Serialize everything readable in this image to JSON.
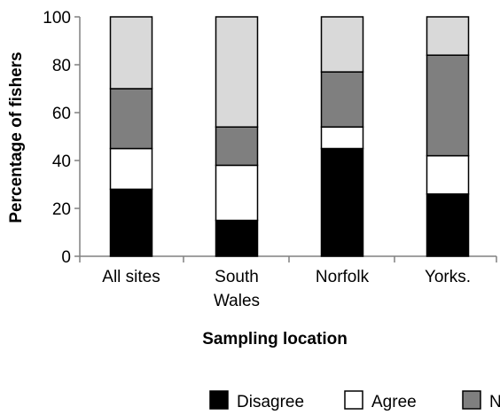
{
  "chart_data": {
    "type": "bar",
    "stacked": true,
    "categories": [
      [
        "All sites"
      ],
      [
        "South",
        "Wales"
      ],
      [
        "Norfolk"
      ],
      [
        "Yorks."
      ]
    ],
    "series": [
      {
        "name": "Disagree",
        "color": "#000000",
        "values": [
          28,
          15,
          45,
          26
        ]
      },
      {
        "name": "Agree",
        "color": "#ffffff",
        "values": [
          17,
          23,
          9,
          16
        ]
      },
      {
        "name": "N",
        "color": "#7f7f7f",
        "values": [
          25,
          16,
          23,
          42
        ]
      },
      {
        "name": "",
        "color": "#d9d9d9",
        "values": [
          30,
          46,
          23,
          16
        ]
      }
    ],
    "xlabel": "Sampling location",
    "ylabel": "Percentage of fishers",
    "ylim": [
      0,
      100
    ],
    "yticks": [
      0,
      20,
      40,
      60,
      80,
      100
    ],
    "grid": false,
    "legend_position": "bottom"
  }
}
